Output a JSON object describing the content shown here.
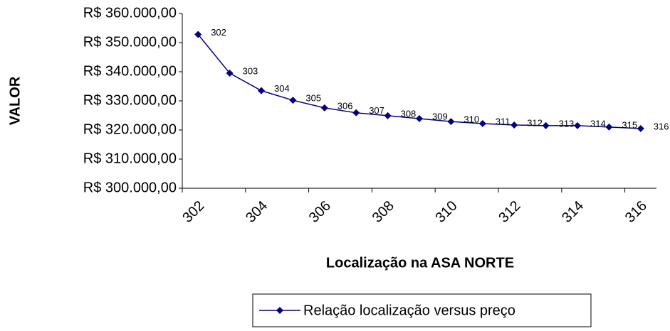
{
  "chart_data": {
    "type": "line",
    "x_label": "Localização na ASA NORTE",
    "y_label": "VALOR",
    "categories": [
      "302",
      "303",
      "304",
      "305",
      "306",
      "307",
      "308",
      "309",
      "310",
      "311",
      "312",
      "313",
      "314",
      "315",
      "316"
    ],
    "tick_every": 2,
    "series": [
      {
        "name": "Relação localização versus preço",
        "color": "#000080",
        "values": [
          352800,
          339500,
          333500,
          330200,
          327600,
          325900,
          324900,
          323900,
          322900,
          322200,
          321700,
          321500,
          321500,
          321000,
          320500
        ]
      }
    ],
    "ylim": [
      300000,
      360000
    ],
    "yticks": [
      {
        "value": 300000,
        "label": "R$ 300.000,00"
      },
      {
        "value": 310000,
        "label": "R$ 310.000,00"
      },
      {
        "value": 320000,
        "label": "R$ 320.000,00"
      },
      {
        "value": 330000,
        "label": "R$ 330.000,00"
      },
      {
        "value": 340000,
        "label": "R$ 340.000,00"
      },
      {
        "value": 350000,
        "label": "R$ 350.000,00"
      },
      {
        "value": 360000,
        "label": "R$ 360.000,00"
      }
    ],
    "grid": false,
    "legend": "bottom"
  }
}
